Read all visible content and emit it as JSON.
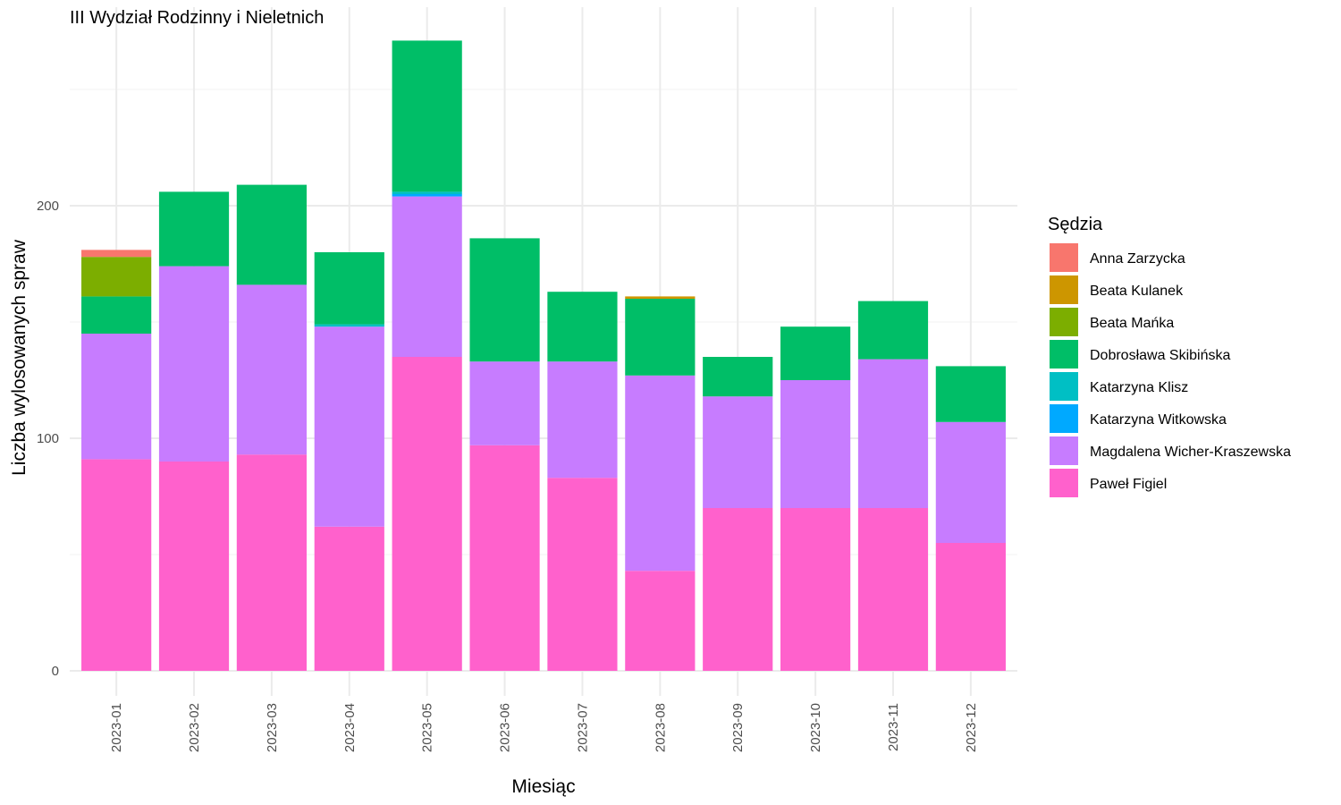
{
  "chart_data": {
    "type": "bar",
    "stacked": true,
    "title": "III Wydział Rodzinny i Nieletnich",
    "xlabel": "Miesiąc",
    "ylabel": "Liczba wylosowanych spraw",
    "ylim": [
      0,
      270
    ],
    "yticks": [
      0,
      100,
      200
    ],
    "grid": true,
    "legend": {
      "title": "Sędzia",
      "placement": "right"
    },
    "categories": [
      "2023-01",
      "2023-02",
      "2023-03",
      "2023-04",
      "2023-05",
      "2023-06",
      "2023-07",
      "2023-08",
      "2023-09",
      "2023-10",
      "2023-11",
      "2023-12"
    ],
    "series": [
      {
        "name": "Paweł Figiel",
        "color": "#FF61CC",
        "values": [
          91,
          90,
          93,
          62,
          135,
          97,
          83,
          43,
          70,
          70,
          70,
          55
        ]
      },
      {
        "name": "Magdalena Wicher-Kraszewska",
        "color": "#C77CFF",
        "values": [
          54,
          84,
          73,
          86,
          69,
          36,
          50,
          84,
          48,
          55,
          64,
          52
        ]
      },
      {
        "name": "Katarzyna Witkowska",
        "color": "#00A9FF",
        "values": [
          0,
          0,
          0,
          0,
          1,
          0,
          0,
          0,
          0,
          0,
          0,
          0
        ]
      },
      {
        "name": "Katarzyna Klisz",
        "color": "#00BFC4",
        "values": [
          0,
          0,
          0,
          1,
          1,
          0,
          0,
          0,
          0,
          0,
          0,
          0
        ]
      },
      {
        "name": "Dobrosława Skibińska",
        "color": "#00BE67",
        "values": [
          16,
          32,
          43,
          31,
          65,
          53,
          30,
          33,
          17,
          23,
          25,
          24
        ]
      },
      {
        "name": "Beata Mańka",
        "color": "#7CAE00",
        "values": [
          17,
          0,
          0,
          0,
          0,
          0,
          0,
          0,
          0,
          0,
          0,
          0
        ]
      },
      {
        "name": "Beata Kulanek",
        "color": "#CD9600",
        "values": [
          0,
          0,
          0,
          0,
          0,
          0,
          0,
          1,
          0,
          0,
          0,
          0
        ]
      },
      {
        "name": "Anna Zarzycka",
        "color": "#F8766D",
        "values": [
          3,
          0,
          0,
          0,
          0,
          0,
          0,
          0,
          0,
          0,
          0,
          0
        ]
      }
    ],
    "legend_order": [
      "Anna Zarzycka",
      "Beata Kulanek",
      "Beata Mańka",
      "Dobrosława Skibińska",
      "Katarzyna Klisz",
      "Katarzyna Witkowska",
      "Magdalena Wicher-Kraszewska",
      "Paweł Figiel"
    ]
  }
}
